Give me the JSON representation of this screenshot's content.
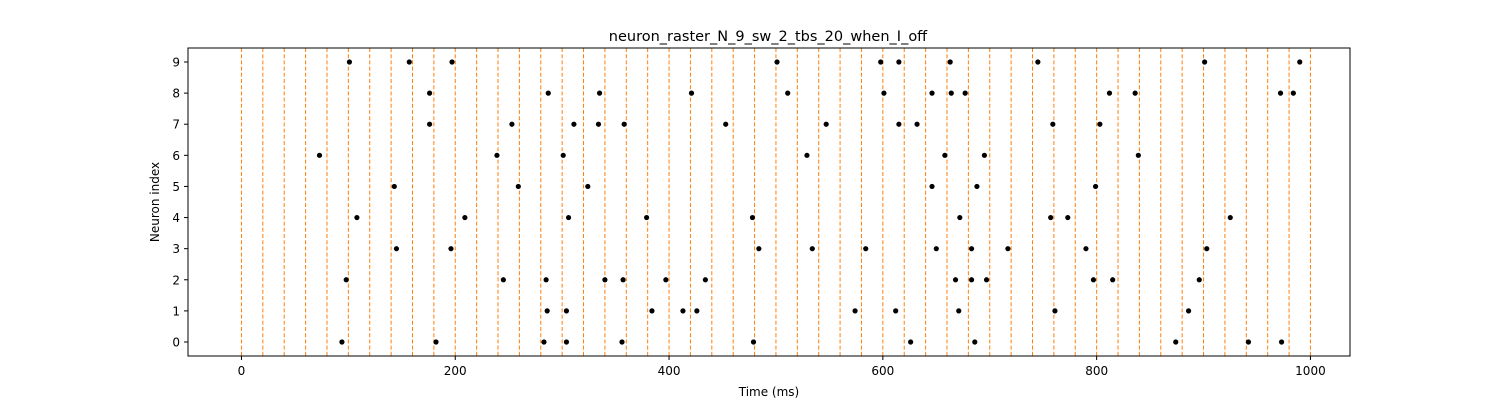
{
  "chart_data": {
    "type": "scatter",
    "title": "neuron_raster_N_9_sw_2_tbs_20_when_I_off",
    "xlabel": "Time (ms)",
    "ylabel": "Neuron index",
    "xlim": [
      -50,
      1037
    ],
    "ylim": [
      -0.45,
      9.45
    ],
    "xticks": [
      0,
      200,
      400,
      600,
      800,
      1000
    ],
    "yticks": [
      0,
      1,
      2,
      3,
      4,
      5,
      6,
      7,
      8,
      9
    ],
    "grid": false,
    "spike_color": "#000000",
    "vline_color": "#ff7f0e",
    "vlines": [
      0,
      20,
      40,
      60,
      80,
      100,
      120,
      140,
      160,
      180,
      200,
      220,
      240,
      260,
      280,
      300,
      320,
      340,
      360,
      380,
      400,
      420,
      440,
      460,
      480,
      500,
      520,
      540,
      560,
      580,
      600,
      620,
      640,
      660,
      680,
      700,
      720,
      740,
      760,
      780,
      800,
      820,
      840,
      860,
      880,
      900,
      920,
      940,
      960,
      980,
      1000
    ],
    "spikes": [
      {
        "neuron": 9,
        "times": [
          101,
          157,
          197,
          501,
          598,
          615,
          663,
          745,
          901,
          990
        ]
      },
      {
        "neuron": 8,
        "times": [
          176,
          287,
          335,
          421,
          511,
          601,
          646,
          664,
          677,
          812,
          836,
          972,
          984
        ]
      },
      {
        "neuron": 7,
        "times": [
          176,
          253,
          311,
          334,
          358,
          453,
          547,
          615,
          632,
          759,
          803
        ]
      },
      {
        "neuron": 6,
        "times": [
          73,
          239,
          301,
          529,
          658,
          695,
          839
        ]
      },
      {
        "neuron": 5,
        "times": [
          143,
          259,
          324,
          646,
          688,
          799
        ]
      },
      {
        "neuron": 4,
        "times": [
          108,
          209,
          306,
          379,
          478,
          672,
          757,
          773,
          925
        ]
      },
      {
        "neuron": 3,
        "times": [
          145,
          196,
          484,
          534,
          584,
          650,
          683,
          717,
          790,
          903
        ]
      },
      {
        "neuron": 2,
        "times": [
          98,
          245,
          285,
          340,
          357,
          397,
          434,
          668,
          683,
          697,
          797,
          815,
          896
        ]
      },
      {
        "neuron": 1,
        "times": [
          286,
          304,
          384,
          413,
          426,
          574,
          612,
          671,
          761,
          886
        ]
      },
      {
        "neuron": 0,
        "times": [
          94,
          182,
          283,
          304,
          356,
          479,
          626,
          686,
          874,
          942,
          973
        ]
      }
    ]
  }
}
